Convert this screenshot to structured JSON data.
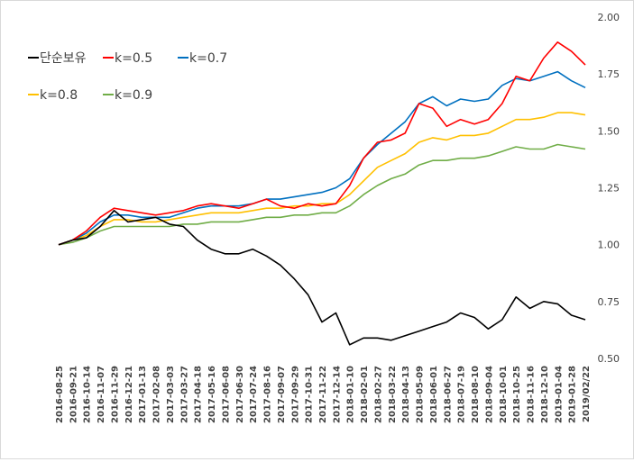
{
  "chart_data": {
    "type": "line",
    "title": "",
    "xlabel": "",
    "ylabel": "",
    "ylim": [
      0.5,
      2.0
    ],
    "yticks": [
      "0.50",
      "0.75",
      "1.00",
      "1.25",
      "1.50",
      "1.75",
      "2.00"
    ],
    "y_axis_side": "right",
    "grid": false,
    "legend_position": "top-left",
    "x": [
      "2016-08-25",
      "2016-09-21",
      "2016-10-14",
      "2016-11-07",
      "2016-11-29",
      "2016-12-21",
      "2017-01-13",
      "2017-02-08",
      "2017-03-03",
      "2017-03-27",
      "2017-04-18",
      "2017-05-16",
      "2017-06-08",
      "2017-06-30",
      "2017-07-24",
      "2017-08-16",
      "2017-09-07",
      "2017-09-29",
      "2017-10-31",
      "2017-11-22",
      "2017-12-14",
      "2018-01-10",
      "2018-02-01",
      "2018-02-27",
      "2018-03-22",
      "2018-04-13",
      "2018-05-09",
      "2018-06-01",
      "2018-06-27",
      "2018-07-19",
      "2018-08-10",
      "2018-09-04",
      "2018-10-01",
      "2018-10-25",
      "2018-11-16",
      "2018-12-10",
      "2019-01-04",
      "2019-01-28",
      "2019/02/22"
    ],
    "series": [
      {
        "name": "단순보유",
        "color": "#000000",
        "values": [
          1.0,
          1.02,
          1.03,
          1.08,
          1.15,
          1.1,
          1.11,
          1.12,
          1.09,
          1.08,
          1.02,
          0.98,
          0.96,
          0.96,
          0.98,
          0.95,
          0.91,
          0.85,
          0.78,
          0.66,
          0.7,
          0.56,
          0.59,
          0.59,
          0.58,
          0.6,
          0.62,
          0.64,
          0.66,
          0.7,
          0.68,
          0.63,
          0.67,
          0.77,
          0.72,
          0.75,
          0.74,
          0.69,
          0.67
        ]
      },
      {
        "name": "k=0.5",
        "color": "#ff0000",
        "values": [
          1.0,
          1.02,
          1.06,
          1.12,
          1.16,
          1.15,
          1.14,
          1.13,
          1.14,
          1.15,
          1.17,
          1.18,
          1.17,
          1.16,
          1.18,
          1.2,
          1.17,
          1.16,
          1.18,
          1.17,
          1.18,
          1.26,
          1.38,
          1.45,
          1.46,
          1.49,
          1.62,
          1.6,
          1.52,
          1.55,
          1.53,
          1.55,
          1.62,
          1.74,
          1.72,
          1.82,
          1.89,
          1.85,
          1.79
        ]
      },
      {
        "name": "k=0.7",
        "color": "#0070c0",
        "values": [
          1.0,
          1.02,
          1.05,
          1.1,
          1.13,
          1.13,
          1.12,
          1.12,
          1.12,
          1.14,
          1.16,
          1.17,
          1.17,
          1.17,
          1.18,
          1.2,
          1.2,
          1.21,
          1.22,
          1.23,
          1.25,
          1.29,
          1.38,
          1.44,
          1.49,
          1.54,
          1.62,
          1.65,
          1.61,
          1.64,
          1.63,
          1.64,
          1.7,
          1.73,
          1.72,
          1.74,
          1.76,
          1.72,
          1.69
        ]
      },
      {
        "name": "k=0.8",
        "color": "#ffc000",
        "values": [
          1.0,
          1.02,
          1.04,
          1.08,
          1.11,
          1.11,
          1.1,
          1.1,
          1.11,
          1.12,
          1.13,
          1.14,
          1.14,
          1.14,
          1.15,
          1.16,
          1.16,
          1.17,
          1.17,
          1.18,
          1.18,
          1.22,
          1.28,
          1.34,
          1.37,
          1.4,
          1.45,
          1.47,
          1.46,
          1.48,
          1.48,
          1.49,
          1.52,
          1.55,
          1.55,
          1.56,
          1.58,
          1.58,
          1.57
        ]
      },
      {
        "name": "k=0.9",
        "color": "#70ad47",
        "values": [
          1.0,
          1.01,
          1.03,
          1.06,
          1.08,
          1.08,
          1.08,
          1.08,
          1.08,
          1.09,
          1.09,
          1.1,
          1.1,
          1.1,
          1.11,
          1.12,
          1.12,
          1.13,
          1.13,
          1.14,
          1.14,
          1.17,
          1.22,
          1.26,
          1.29,
          1.31,
          1.35,
          1.37,
          1.37,
          1.38,
          1.38,
          1.39,
          1.41,
          1.43,
          1.42,
          1.42,
          1.44,
          1.43,
          1.42
        ]
      }
    ]
  }
}
